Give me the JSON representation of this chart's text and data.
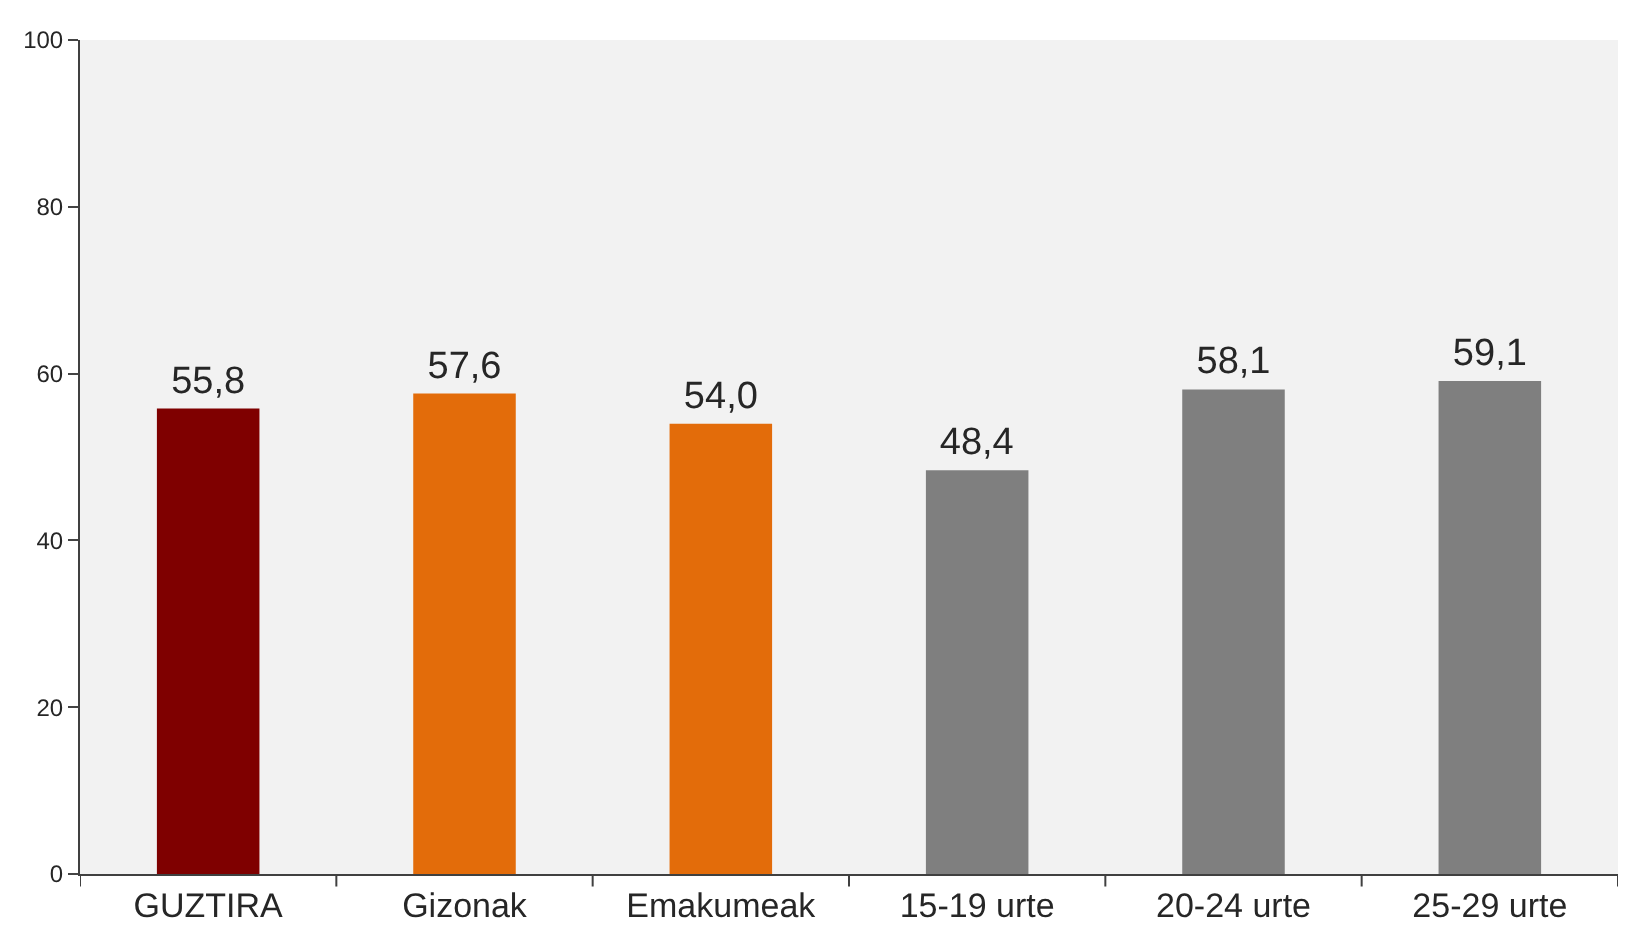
{
  "chart_data": {
    "type": "bar",
    "categories": [
      "GUZTIRA",
      "Gizonak",
      "Emakumeak",
      "15-19 urte",
      "20-24 urte",
      "25-29 urte"
    ],
    "values": [
      55.8,
      57.6,
      54.0,
      48.4,
      58.1,
      59.1
    ],
    "value_labels": [
      "55,8",
      "57,6",
      "54,0",
      "48,4",
      "58,1",
      "59,1"
    ],
    "colors": [
      "#7f0000",
      "#e36c0a",
      "#e36c0a",
      "#7f7f7f",
      "#7f7f7f",
      "#7f7f7f"
    ],
    "ylim": [
      0,
      100
    ],
    "yticks": [
      0,
      20,
      40,
      60,
      80,
      100
    ],
    "grid": false
  }
}
